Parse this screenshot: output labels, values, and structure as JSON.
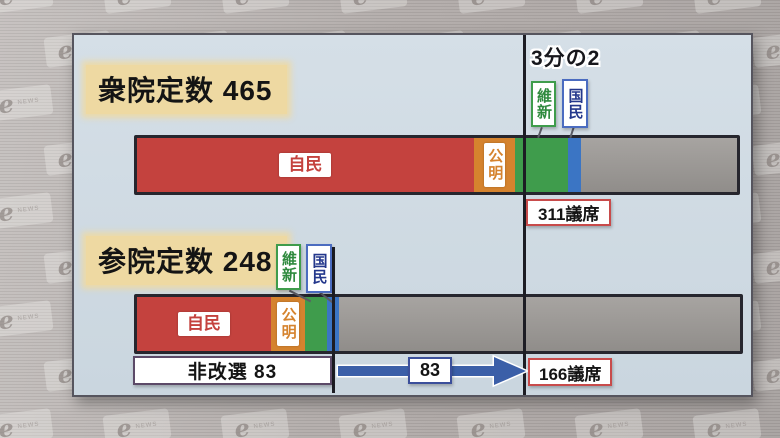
{
  "background": {
    "watermark_glyph": "e",
    "watermark_text": "NEWS"
  },
  "panel": {
    "two_thirds_label": "3分の2",
    "chart1": {
      "title": "衆院定数 465",
      "ishin_label": "維新",
      "kokumin_label": "国民",
      "threshold_label": "311議席"
    },
    "chart2": {
      "title": "参院定数 248",
      "ishin_label": "維新",
      "kokumin_label": "国民",
      "non_contested_label": "非改選 83",
      "arrow_label": "83",
      "threshold_label": "166議席"
    }
  },
  "chart_data": [
    {
      "type": "bar",
      "orientation": "horizontal-stacked",
      "title": "衆院定数 465",
      "total_seats": 465,
      "values_estimated_from_segment_widths": true,
      "series": [
        {
          "key": "ldp",
          "name": "自民",
          "value": 261,
          "color": "#c4423e",
          "label": "horizontal"
        },
        {
          "key": "komeito",
          "name": "公明",
          "value": 32,
          "color": "#d5832e",
          "label": "vertical"
        },
        {
          "key": "ishin",
          "name": "維新",
          "value": 41,
          "color": "#3f9c4c",
          "label": "callout"
        },
        {
          "key": "dpp",
          "name": "国民",
          "value": 10,
          "color": "#3b75c4",
          "label": "callout"
        }
      ],
      "remainder_color": "#9d9a96",
      "threshold": {
        "label": "3分の2",
        "seats_label": "311議席",
        "position_seats": 311
      }
    },
    {
      "type": "bar",
      "orientation": "horizontal-stacked",
      "title": "参院定数 248",
      "total_seats": 248,
      "values_estimated_from_segment_widths": true,
      "series": [
        {
          "key": "ldp",
          "name": "自民",
          "value": 55,
          "color": "#c4423e",
          "label": "horizontal"
        },
        {
          "key": "komeito",
          "name": "公明",
          "value": 14,
          "color": "#d5832e",
          "label": "vertical"
        },
        {
          "key": "ishin",
          "name": "維新",
          "value": 9,
          "color": "#3f9c4c",
          "label": "callout"
        },
        {
          "key": "dpp",
          "name": "国民",
          "value": 5,
          "color": "#3b75c4",
          "label": "callout"
        }
      ],
      "remainder_color": "#9d9a96",
      "annotations": {
        "non_contested": "非改選 83",
        "non_contested_seats": 83,
        "gain_arrow": "83",
        "threshold": "166議席",
        "threshold_seats": 166
      }
    }
  ]
}
